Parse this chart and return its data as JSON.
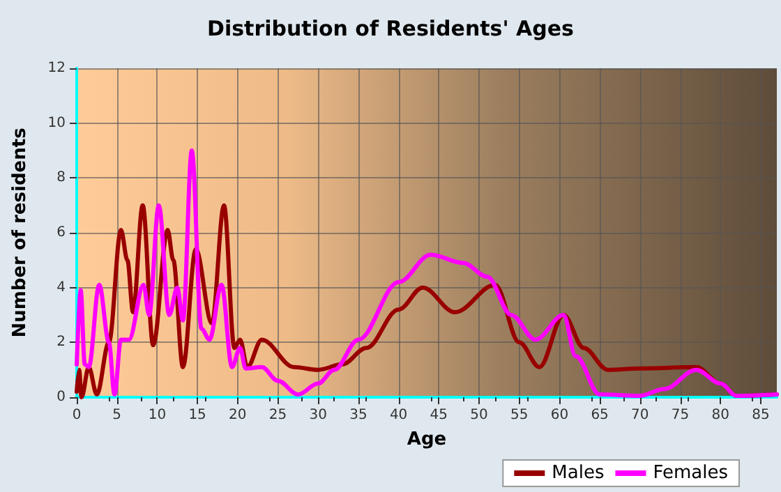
{
  "chart_data": {
    "type": "line",
    "title": "Distribution of Residents' Ages",
    "xlabel": "Age",
    "ylabel": "Number of residents",
    "xlim": [
      0,
      87
    ],
    "xticks": [
      0,
      5,
      10,
      15,
      20,
      25,
      30,
      35,
      40,
      45,
      50,
      55,
      60,
      65,
      70,
      75,
      80,
      85
    ],
    "ylim": [
      0,
      12
    ],
    "yticks": [
      0,
      2,
      4,
      6,
      8,
      10,
      12
    ],
    "grid": true,
    "legend": "bottom right",
    "marker": "none",
    "line_style": "solid",
    "series": [
      {
        "name": "Males",
        "color": "#990000",
        "x": [
          0,
          0.3,
          0.6,
          1.5,
          2.5,
          4,
          5.5,
          6.3,
          7,
          8.2,
          9.5,
          11.3,
          12,
          13.2,
          14.8,
          16.8,
          18.3,
          19.6,
          20.3,
          21.2,
          23,
          27,
          30,
          33,
          36,
          40,
          43,
          47,
          52,
          55,
          57.5,
          60.5,
          63,
          66,
          70,
          77,
          80,
          82,
          87
        ],
        "values": [
          0.2,
          1,
          0,
          1.1,
          0.1,
          2,
          6.1,
          5,
          3.1,
          7,
          1.9,
          6.1,
          5,
          1.1,
          5.4,
          2.7,
          7,
          1.8,
          2.1,
          1.1,
          2.1,
          1.1,
          1,
          1.2,
          1.8,
          3.2,
          4,
          3.1,
          4.1,
          2,
          1.1,
          3,
          1.8,
          1,
          1.05,
          1.1,
          0.5,
          0.05,
          0.1
        ]
      },
      {
        "name": "Females",
        "color": "#ff00ff",
        "x": [
          0,
          0.5,
          1,
          1.5,
          2.8,
          4,
          4.7,
          5.5,
          6.5,
          8.3,
          9,
          10.2,
          11.5,
          12.5,
          13.2,
          14.3,
          15.5,
          16.5,
          18,
          19.3,
          20.3,
          21,
          23,
          25,
          27.5,
          30,
          32,
          35,
          40,
          44,
          48,
          51,
          54,
          57,
          60.5,
          62,
          65,
          70,
          73,
          77,
          80,
          82,
          87
        ],
        "values": [
          1.2,
          3.9,
          1.2,
          1.1,
          4.1,
          2,
          0.1,
          2.1,
          2.1,
          4.1,
          3,
          7,
          3,
          4,
          2.8,
          9,
          2.5,
          2.1,
          4.1,
          1.1,
          1.8,
          1.05,
          1.1,
          0.6,
          0.1,
          0.5,
          1,
          2.1,
          4.2,
          5.2,
          4.9,
          4.4,
          3,
          2.1,
          3,
          1.5,
          0.1,
          0.05,
          0.3,
          1,
          0.5,
          0.05,
          0.1
        ]
      }
    ]
  }
}
